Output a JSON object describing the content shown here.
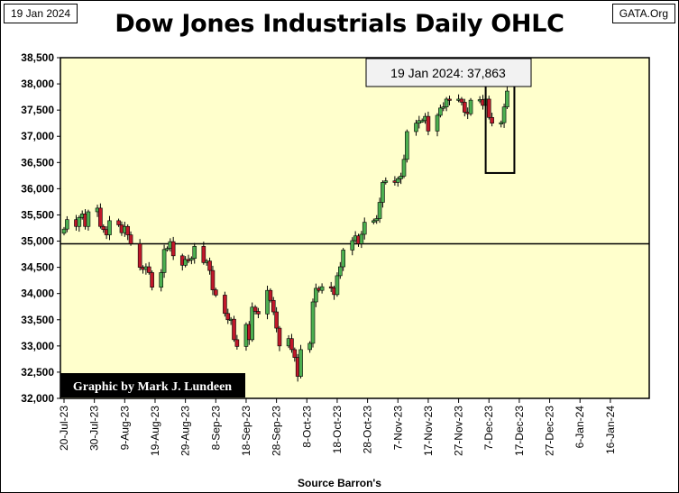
{
  "header": {
    "date": "19 Jan 2024",
    "brand": "GATA.Org",
    "title": "Dow Jones Industrials Daily OHLC"
  },
  "footer": {
    "source": "Source Barron's"
  },
  "chart_data": {
    "type": "candlestick",
    "title": "Dow Jones Industrials Daily OHLC",
    "ylim": [
      32000,
      38500
    ],
    "yticks": [
      32000,
      32500,
      33000,
      33500,
      34000,
      34500,
      35000,
      35500,
      36000,
      36500,
      37000,
      37500,
      38000,
      38500
    ],
    "ytick_labels": [
      "32,000",
      "32,500",
      "33,000",
      "33,500",
      "34,000",
      "34,500",
      "35,000",
      "35,500",
      "36,000",
      "36,500",
      "37,000",
      "37,500",
      "38,000",
      "38,500"
    ],
    "xtick_labels": [
      "20-Jul-23",
      "30-Jul-23",
      "9-Aug-23",
      "19-Aug-23",
      "29-Aug-23",
      "8-Sep-23",
      "18-Sep-23",
      "28-Sep-23",
      "8-Oct-23",
      "18-Oct-23",
      "28-Oct-23",
      "7-Nov-23",
      "17-Nov-23",
      "27-Nov-23",
      "7-Dec-23",
      "17-Dec-23",
      "27-Dec-23",
      "6-Jan-24",
      "16-Jan-24"
    ],
    "reference_line": 34950,
    "grid": false,
    "background": "#ffffcc",
    "up_color": "#4caf50",
    "down_color": "#c0182a",
    "annotation": "19 Jan 2024:  37,863",
    "highlight_box": {
      "from": "16-Jan-24",
      "to": "19-Jan-24",
      "low": 36300,
      "high": 38400
    },
    "signature": "Graphic by Mark J. Lundeen",
    "closes": [
      35230,
      35410,
      35280,
      35450,
      35520,
      35280,
      35560,
      35630,
      35280,
      35220,
      35120,
      35390,
      35310,
      35160,
      35280,
      35120,
      34950,
      34500,
      34460,
      34510,
      34400,
      34120,
      34400,
      34840,
      34860,
      34990,
      34720,
      34540,
      34650,
      34640,
      34670,
      34900,
      34590,
      34620,
      34440,
      34070,
      33970,
      33620,
      33500,
      33510,
      33120,
      32990,
      33410,
      33120,
      33740,
      33660,
      33610,
      34060,
      33870,
      33650,
      33340,
      33000,
      33140,
      32930,
      32780,
      32420,
      32930,
      33050,
      33840,
      34100,
      34060,
      34130,
      34110,
      33980,
      34340,
      34510,
      34830,
      35010,
      35100,
      34950,
      35130,
      35360,
      35390,
      35430,
      35740,
      36120,
      36150,
      36120,
      36190,
      36240,
      36560,
      37090,
      37250,
      37300,
      37300,
      37380,
      37100,
      37400,
      37540,
      37560,
      37710,
      37690,
      37710,
      37650,
      37460,
      37430,
      37690,
      37700,
      37590,
      37710,
      37360,
      37250,
      37260,
      37560,
      37863
    ]
  }
}
